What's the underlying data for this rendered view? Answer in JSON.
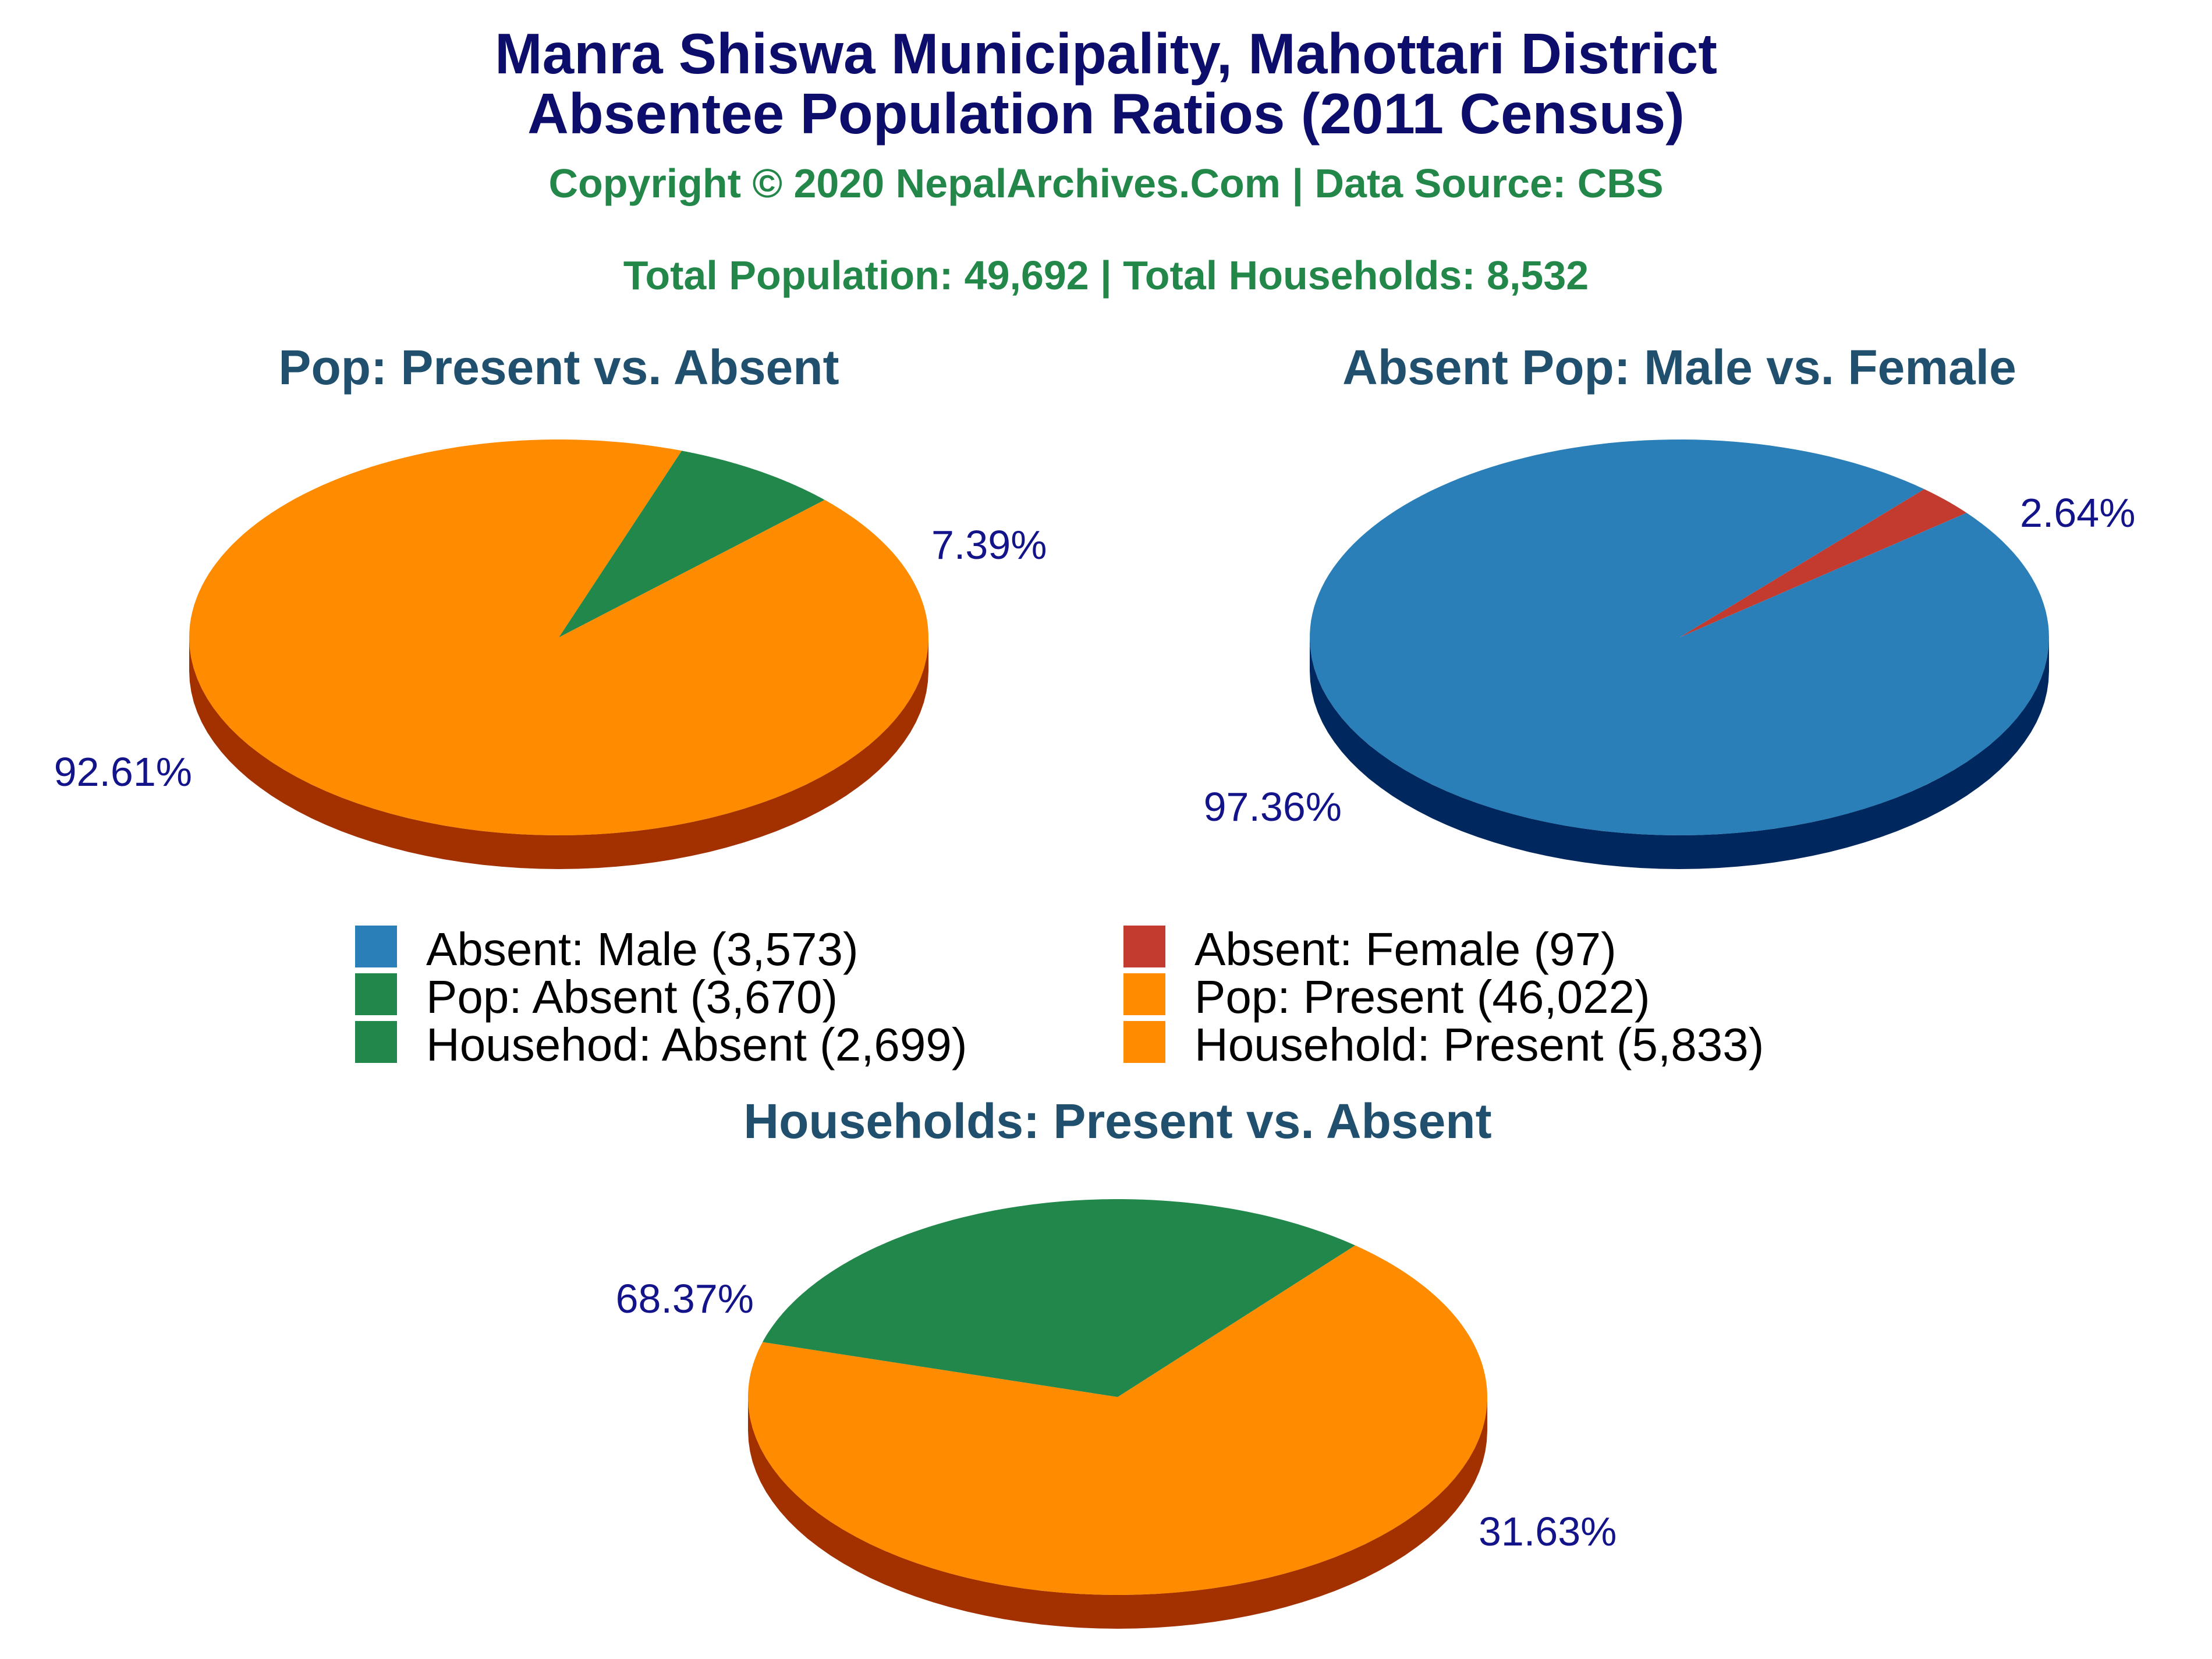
{
  "header": {
    "title_line1": "Manra Shiswa Municipality, Mahottari District",
    "title_line2": "Absentee Population Ratios (2011 Census)",
    "copyright": "Copyright © 2020 NepalArchives.Com | Data Source: CBS",
    "totals": "Total Population: 49,692 | Total Households: 8,532"
  },
  "colors": {
    "orange": "#ff8c00",
    "orange_side": "#a33100",
    "green": "#21874a",
    "green_side": "#003300",
    "blue": "#2b7fb8",
    "blue_side": "#00285e",
    "red": "#c33a2e",
    "red_side": "#7a1e14",
    "title": "#0d0d6b",
    "subtitle": "#23874a",
    "pie_title": "#20506e",
    "label": "#14148a"
  },
  "legend": {
    "placement": "center",
    "items": [
      {
        "label": "Absent: Male (3,573)",
        "color": "#2b7fb8"
      },
      {
        "label": "Absent: Female (97)",
        "color": "#c33a2e"
      },
      {
        "label": "Pop: Absent (3,670)",
        "color": "#21874a"
      },
      {
        "label": "Pop: Present (46,022)",
        "color": "#ff8c00"
      },
      {
        "label": "Househod: Absent (2,699)",
        "color": "#21874a"
      },
      {
        "label": "Household: Present (5,833)",
        "color": "#ff8c00"
      }
    ]
  },
  "chart_data": [
    {
      "type": "pie",
      "title": "Pop: Present vs. Absent",
      "slices": [
        {
          "label": "Pop: Absent",
          "value": 3670,
          "percent": 7.39,
          "percent_label": "7.39%",
          "color": "#21874a",
          "side": "#003300"
        },
        {
          "label": "Pop: Present",
          "value": 46022,
          "percent": 92.61,
          "percent_label": "92.61%",
          "color": "#ff8c00",
          "side": "#a33100"
        }
      ]
    },
    {
      "type": "pie",
      "title": "Absent Pop: Male vs. Female",
      "slices": [
        {
          "label": "Absent: Female",
          "value": 97,
          "percent": 2.64,
          "percent_label": "2.64%",
          "color": "#c33a2e",
          "side": "#7a1e14"
        },
        {
          "label": "Absent: Male",
          "value": 3573,
          "percent": 97.36,
          "percent_label": "97.36%",
          "color": "#2b7fb8",
          "side": "#00285e"
        }
      ]
    },
    {
      "type": "pie",
      "title": "Households: Present vs. Absent",
      "slices": [
        {
          "label": "Household: Absent",
          "value": 2699,
          "percent": 31.63,
          "percent_label": "31.63%",
          "color": "#21874a",
          "side": "#003300"
        },
        {
          "label": "Household: Present",
          "value": 5833,
          "percent": 68.37,
          "percent_label": "68.37%",
          "color": "#ff8c00",
          "side": "#a33100"
        }
      ]
    }
  ]
}
